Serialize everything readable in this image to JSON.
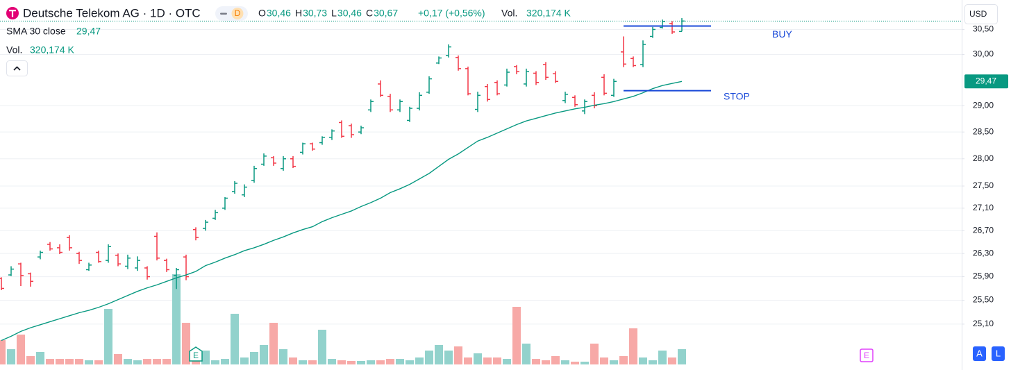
{
  "chart_data": {
    "type": "ohlc",
    "title": "Deutsche Telekom AG · 1D · OTC",
    "interval_badge": "D",
    "ohlc_legend": [
      {
        "key": "O",
        "value": "30,46"
      },
      {
        "key": "H",
        "value": "30,73"
      },
      {
        "key": "L",
        "value": "30,46"
      },
      {
        "key": "C",
        "value": "30,67"
      }
    ],
    "change": "+0,17 (+0,56%)",
    "volume_legend": {
      "name": "Vol.",
      "value": "320,174 K"
    },
    "currency": "USD",
    "scale_buttons": [
      "A",
      "L"
    ],
    "log_scale": true,
    "grid": true,
    "up_color": "#089981",
    "down_color": "#f23645",
    "volume_up_color": "#92d2cc",
    "volume_down_color": "#f7a9a7",
    "ylim": [
      24.35,
      31.1
    ],
    "yticks": [
      {
        "value": 30.5,
        "label": "30,50"
      },
      {
        "value": 30.0,
        "label": "30,00"
      },
      {
        "value": 29.0,
        "label": "29,00"
      },
      {
        "value": 28.5,
        "label": "28,50"
      },
      {
        "value": 28.0,
        "label": "28,00"
      },
      {
        "value": 27.5,
        "label": "27,50"
      },
      {
        "value": 27.1,
        "label": "27,10"
      },
      {
        "value": 26.7,
        "label": "26,70"
      },
      {
        "value": 26.3,
        "label": "26,30"
      },
      {
        "value": 25.9,
        "label": "25,90"
      },
      {
        "value": 25.5,
        "label": "25,50"
      },
      {
        "value": 25.1,
        "label": "25,10"
      }
    ],
    "volume_ylim": [
      0,
      2000000
    ],
    "open": [
      25.87,
      25.93,
      26.12,
      25.95,
      26.24,
      26.46,
      26.4,
      26.58,
      26.3,
      26.02,
      26.32,
      26.18,
      26.27,
      26.08,
      26.05,
      26.05,
      26.6,
      26.18,
      25.92,
      26.24,
      26.72,
      26.74,
      26.92,
      27.1,
      27.4,
      27.34,
      27.6,
      27.9,
      28.02,
      27.82,
      28.0,
      28.12,
      28.28,
      28.3,
      28.4,
      28.68,
      28.62,
      28.5,
      28.92,
      29.42,
      29.18,
      28.92,
      28.72,
      28.95,
      29.26,
      29.83,
      29.98,
      29.94,
      29.72,
      28.93,
      29.37,
      29.45,
      29.4,
      29.76,
      29.42,
      29.63,
      29.8,
      29.62,
      29.1,
      29.16,
      28.9,
      29.2,
      29.55,
      29.2,
      30.05,
      29.92,
      29.8,
      30.36,
      30.54,
      30.62,
      30.46
    ],
    "high": [
      25.89,
      26.08,
      26.14,
      25.97,
      26.35,
      26.5,
      26.46,
      26.62,
      26.33,
      26.14,
      26.35,
      26.46,
      26.3,
      26.28,
      26.25,
      26.08,
      26.67,
      26.21,
      26.05,
      26.28,
      26.76,
      26.89,
      27.07,
      27.3,
      27.59,
      27.53,
      27.87,
      28.1,
      28.05,
      28.05,
      28.05,
      28.3,
      28.3,
      28.42,
      28.55,
      28.72,
      28.66,
      28.62,
      29.12,
      29.49,
      29.23,
      29.12,
      28.98,
      29.26,
      29.57,
      29.96,
      30.2,
      29.98,
      29.76,
      29.27,
      29.42,
      29.49,
      29.72,
      29.79,
      29.72,
      29.67,
      29.85,
      29.67,
      29.27,
      29.2,
      29.12,
      29.26,
      29.61,
      29.52,
      30.36,
      29.96,
      30.28,
      30.55,
      30.7,
      30.67,
      30.73
    ],
    "low": [
      25.67,
      25.91,
      25.74,
      25.73,
      26.2,
      26.35,
      26.29,
      26.35,
      26.12,
      26.0,
      26.14,
      26.14,
      26.08,
      26.03,
      26.0,
      25.85,
      26.18,
      25.98,
      25.69,
      25.84,
      26.53,
      26.7,
      26.89,
      27.07,
      27.36,
      27.3,
      27.56,
      27.87,
      27.87,
      27.78,
      27.83,
      28.08,
      28.15,
      28.26,
      28.35,
      28.39,
      28.39,
      28.46,
      28.88,
      29.17,
      28.88,
      28.88,
      28.69,
      28.91,
      29.23,
      29.81,
      29.94,
      29.68,
      29.2,
      28.88,
      29.08,
      29.2,
      29.37,
      29.61,
      29.37,
      29.4,
      29.5,
      29.44,
      29.05,
      28.98,
      28.84,
      28.95,
      29.2,
      29.17,
      29.75,
      29.75,
      29.75,
      30.33,
      30.52,
      30.41,
      30.46
    ],
    "close": [
      25.7,
      26.03,
      25.92,
      25.82,
      26.32,
      26.38,
      26.32,
      26.4,
      26.18,
      26.1,
      26.16,
      26.42,
      26.12,
      26.22,
      26.18,
      25.9,
      26.22,
      26.02,
      26.02,
      25.9,
      26.58,
      26.85,
      27.02,
      27.28,
      27.55,
      27.48,
      27.82,
      28.05,
      27.92,
      28.0,
      27.86,
      28.28,
      28.18,
      28.4,
      28.52,
      28.42,
      28.45,
      28.58,
      29.08,
      29.2,
      28.92,
      29.08,
      28.95,
      29.2,
      29.52,
      29.93,
      30.15,
      29.72,
      29.23,
      29.2,
      29.12,
      29.23,
      29.65,
      29.66,
      29.66,
      29.45,
      29.55,
      29.47,
      29.22,
      29.02,
      29.08,
      29.0,
      29.24,
      29.47,
      29.81,
      29.78,
      30.2,
      30.5,
      30.66,
      30.45,
      30.67
    ],
    "volume": [
      509000,
      320000,
      626000,
      175000,
      262000,
      116000,
      116000,
      116000,
      116000,
      87000,
      87000,
      1164000,
      218000,
      116000,
      87000,
      116000,
      116000,
      116000,
      1892000,
      873000,
      262000,
      291000,
      87000,
      116000,
      1062000,
      146000,
      262000,
      408000,
      873000,
      320000,
      146000,
      87000,
      87000,
      728000,
      116000,
      87000,
      73000,
      73000,
      87000,
      87000,
      116000,
      116000,
      87000,
      146000,
      291000,
      408000,
      291000,
      378000,
      146000,
      233000,
      146000,
      146000,
      116000,
      1208000,
      437000,
      116000,
      87000,
      175000,
      87000,
      58000,
      58000,
      437000,
      146000,
      87000,
      175000,
      757000,
      146000,
      87000,
      291000,
      146000,
      320174
    ],
    "sma": {
      "name": "SMA 30 close",
      "value_label": "29,47",
      "color": "#089981",
      "values": [
        24.83,
        24.9,
        24.98,
        25.04,
        25.09,
        25.14,
        25.19,
        25.24,
        25.29,
        25.33,
        25.38,
        25.44,
        25.51,
        25.58,
        25.65,
        25.71,
        25.76,
        25.82,
        25.88,
        25.93,
        25.99,
        26.09,
        26.15,
        26.22,
        26.28,
        26.35,
        26.4,
        26.46,
        26.53,
        26.59,
        26.66,
        26.72,
        26.77,
        26.86,
        26.93,
        26.99,
        27.05,
        27.13,
        27.2,
        27.28,
        27.38,
        27.45,
        27.53,
        27.63,
        27.73,
        27.86,
        27.99,
        28.09,
        28.21,
        28.33,
        28.4,
        28.48,
        28.56,
        28.64,
        28.71,
        28.76,
        28.81,
        28.86,
        28.9,
        28.94,
        28.97,
        29.01,
        29.04,
        29.08,
        29.13,
        29.18,
        29.25,
        29.33,
        29.39,
        29.43,
        29.47
      ]
    },
    "annotations": [
      {
        "text": "BUY",
        "price": 30.57,
        "x": [
          64,
          73
        ],
        "color": "#1848d8"
      },
      {
        "text": "STOP",
        "price": 29.29,
        "x": [
          64,
          73
        ],
        "color": "#1848d8"
      }
    ],
    "events": [
      {
        "index": 20,
        "label": "E",
        "color": "#089981"
      },
      {
        "index": 89,
        "label": "E",
        "color": "#e040fb"
      }
    ]
  }
}
